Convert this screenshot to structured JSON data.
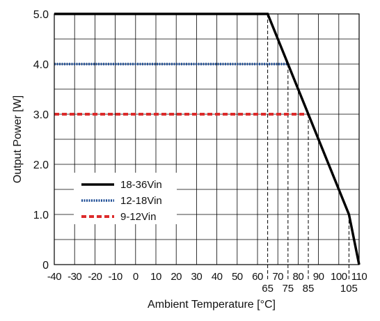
{
  "chart_data": {
    "type": "line",
    "title": "",
    "xlabel": "Ambient Temperature [°C]",
    "ylabel": "Output Power [W]",
    "xlim": [
      -40,
      110
    ],
    "ylim": [
      0,
      5
    ],
    "x_ticks": [
      -40,
      -30,
      -20,
      -10,
      0,
      10,
      20,
      30,
      40,
      50,
      60,
      70,
      80,
      90,
      100,
      110
    ],
    "x_tick_labels": [
      "-40",
      "-30",
      "-20",
      "-10",
      "0",
      "10",
      "20",
      "30",
      "40",
      "50",
      "60",
      "70",
      "80",
      "90",
      "100",
      "110"
    ],
    "y_ticks": [
      0,
      0.5,
      1,
      1.5,
      2,
      2.5,
      3,
      3.5,
      4,
      4.5,
      5
    ],
    "y_tick_labels": [
      {
        "value": 0,
        "label": "0"
      },
      {
        "value": 1,
        "label": "1.0"
      },
      {
        "value": 2,
        "label": "2.0"
      },
      {
        "value": 3,
        "label": "3.0"
      },
      {
        "value": 4,
        "label": "4.0"
      },
      {
        "value": 5,
        "label": "5.0"
      }
    ],
    "derating_marks": [
      {
        "x": 65,
        "label": "65"
      },
      {
        "x": 75,
        "label": "75"
      },
      {
        "x": 85,
        "label": "85"
      },
      {
        "x": 105,
        "label": "105"
      }
    ],
    "grid": true,
    "legend_position": "lower-left",
    "series": [
      {
        "name": "18-36Vin",
        "color": "#000000",
        "style": "solid",
        "points": [
          [
            -40,
            5.0
          ],
          [
            65,
            5.0
          ],
          [
            105,
            1.0
          ],
          [
            110,
            0.0
          ]
        ]
      },
      {
        "name": "12-18Vin",
        "color": "#1f4e96",
        "style": "dotted",
        "points": [
          [
            -40,
            4.0
          ],
          [
            75,
            4.0
          ]
        ]
      },
      {
        "name": "9-12Vin",
        "color": "#dc2b2b",
        "style": "dashed",
        "points": [
          [
            -40,
            3.0
          ],
          [
            85,
            3.0
          ]
        ]
      }
    ]
  }
}
